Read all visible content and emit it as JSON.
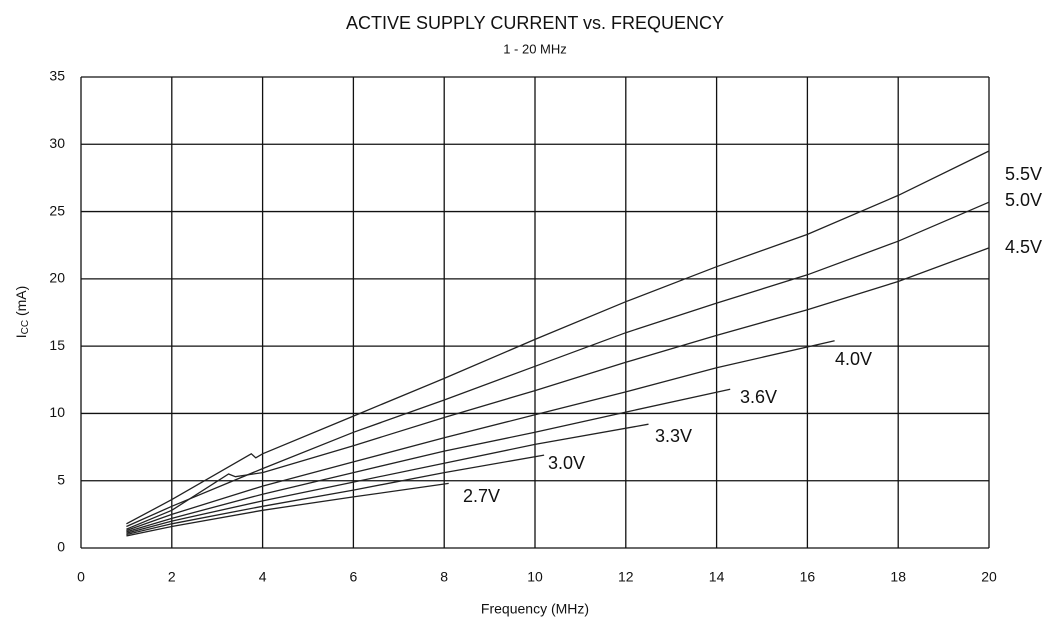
{
  "chart_data": {
    "type": "line",
    "title": "ACTIVE SUPPLY CURRENT vs. FREQUENCY",
    "subtitle": "1 - 20 MHz",
    "xlabel": "Frequency (MHz)",
    "ylabel": [
      "I",
      "CC",
      " (mA)"
    ],
    "xlim": [
      0,
      20
    ],
    "xticks": [
      0,
      2,
      4,
      6,
      8,
      10,
      12,
      14,
      16,
      18,
      20
    ],
    "ylim": [
      0,
      35
    ],
    "yticks": [
      0,
      5,
      10,
      15,
      20,
      25,
      30,
      35
    ],
    "grid": true,
    "series": [
      {
        "name": "5.5V",
        "color": "#222222",
        "x": [
          1,
          2,
          3.75,
          3.85,
          4,
          6,
          8,
          10,
          12,
          14,
          16,
          18,
          20
        ],
        "values": [
          1.8,
          3.6,
          7.0,
          6.7,
          7.0,
          9.8,
          12.6,
          15.5,
          18.3,
          20.9,
          23.3,
          26.2,
          29.5
        ]
      },
      {
        "name": "5.0V",
        "color": "#222222",
        "x": [
          1,
          2,
          4,
          6,
          8,
          10,
          12,
          14,
          16,
          18,
          20
        ],
        "values": [
          1.6,
          3.1,
          5.9,
          8.6,
          11.0,
          13.5,
          16.0,
          18.2,
          20.3,
          22.8,
          25.7
        ]
      },
      {
        "name": "4.5V",
        "color": "#222222",
        "x": [
          1,
          2,
          3.25,
          3.4,
          4,
          6,
          8,
          10,
          12,
          14,
          16,
          18,
          20
        ],
        "values": [
          1.4,
          2.8,
          5.5,
          5.3,
          5.6,
          7.6,
          9.7,
          11.7,
          13.8,
          15.8,
          17.7,
          19.8,
          22.3
        ]
      },
      {
        "name": "4.0V",
        "color": "#222222",
        "x": [
          1,
          2,
          4,
          6,
          8,
          10,
          12,
          14,
          16.6
        ],
        "values": [
          1.3,
          2.5,
          4.6,
          6.4,
          8.2,
          9.9,
          11.6,
          13.4,
          15.4
        ]
      },
      {
        "name": "3.6V",
        "color": "#222222",
        "x": [
          1,
          2,
          4,
          6,
          8,
          10,
          12,
          14.3
        ],
        "values": [
          1.2,
          2.2,
          4.0,
          5.6,
          7.2,
          8.6,
          10.1,
          11.8
        ]
      },
      {
        "name": "3.3V",
        "color": "#222222",
        "x": [
          1,
          2,
          4,
          6,
          8,
          10,
          12.5
        ],
        "values": [
          1.1,
          2.0,
          3.5,
          4.9,
          6.3,
          7.7,
          9.2
        ]
      },
      {
        "name": "3.0V",
        "color": "#222222",
        "x": [
          1,
          2,
          4,
          6,
          8,
          10.2
        ],
        "values": [
          1.0,
          1.8,
          3.1,
          4.3,
          5.6,
          6.9
        ]
      },
      {
        "name": "2.7V",
        "color": "#222222",
        "x": [
          1,
          2,
          4,
          6,
          8.1
        ],
        "values": [
          0.9,
          1.6,
          2.8,
          3.8,
          4.8
        ]
      }
    ]
  }
}
